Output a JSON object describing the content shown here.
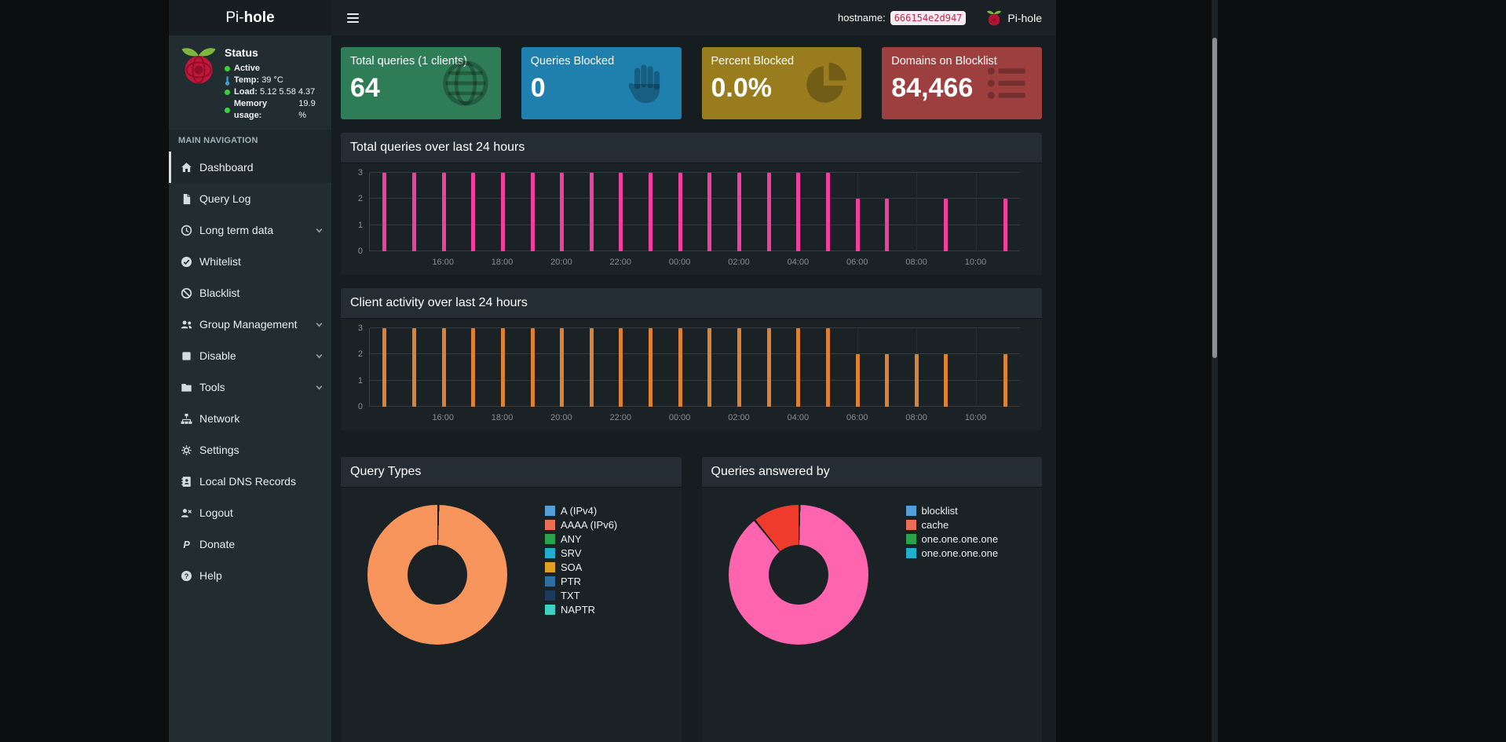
{
  "logo": {
    "prefix": "Pi-",
    "suffix": "hole"
  },
  "navbar": {
    "hostname_label": "hostname:",
    "hostname_value": "666154e2d947",
    "brand": "Pi-hole"
  },
  "sidebar": {
    "status": {
      "title": "Status",
      "rows": [
        {
          "icon": "dot",
          "color": "#3bd13b",
          "label": "Active",
          "value": ""
        },
        {
          "icon": "thermometer",
          "color": "#3d9bd3",
          "label": "Temp:",
          "value": "39 °C"
        },
        {
          "icon": "dot",
          "color": "#3bd13b",
          "label": "Load:",
          "value": "5.12 5.58 4.37"
        },
        {
          "icon": "dot",
          "color": "#3bd13b",
          "label": "Memory usage:",
          "value": "19.9 %"
        }
      ]
    },
    "nav_header": "MAIN NAVIGATION",
    "items": [
      {
        "label": "Dashboard",
        "icon": "home",
        "active": true,
        "chevron": false
      },
      {
        "label": "Query Log",
        "icon": "file",
        "active": false,
        "chevron": false
      },
      {
        "label": "Long term data",
        "icon": "clock",
        "active": false,
        "chevron": true
      },
      {
        "label": "Whitelist",
        "icon": "check-circle",
        "active": false,
        "chevron": false
      },
      {
        "label": "Blacklist",
        "icon": "ban",
        "active": false,
        "chevron": false
      },
      {
        "label": "Group Management",
        "icon": "users",
        "active": false,
        "chevron": true
      },
      {
        "label": "Disable",
        "icon": "stop",
        "active": false,
        "chevron": true
      },
      {
        "label": "Tools",
        "icon": "folder",
        "active": false,
        "chevron": true
      },
      {
        "label": "Network",
        "icon": "sitemap",
        "active": false,
        "chevron": false
      },
      {
        "label": "Settings",
        "icon": "gears",
        "active": false,
        "chevron": false
      },
      {
        "label": "Local DNS Records",
        "icon": "address-book",
        "active": false,
        "chevron": false
      },
      {
        "label": "Logout",
        "icon": "user-times",
        "active": false,
        "chevron": false
      },
      {
        "label": "Donate",
        "icon": "paypal",
        "active": false,
        "chevron": false
      },
      {
        "label": "Help",
        "icon": "question-circle",
        "active": false,
        "chevron": false
      }
    ]
  },
  "cards": [
    {
      "title": "Total queries (1 clients)",
      "value": "64",
      "color": "#2e7d56",
      "icon": "globe"
    },
    {
      "title": "Queries Blocked",
      "value": "0",
      "color": "#1f7fad",
      "icon": "hand-paper"
    },
    {
      "title": "Percent Blocked",
      "value": "0.0%",
      "color": "#997c1e",
      "icon": "pie-chart"
    },
    {
      "title": "Domains on Blocklist",
      "value": "84,466",
      "color": "#9e3f3f",
      "icon": "list-alt"
    }
  ],
  "panels": {
    "total_queries": {
      "title": "Total queries over last 24 hours"
    },
    "client_activity": {
      "title": "Client activity over last 24 hours"
    },
    "query_types": {
      "title": "Query Types"
    },
    "answered_by": {
      "title": "Queries answered by"
    }
  },
  "chart_data": [
    {
      "type": "bar",
      "title": "Total queries over last 24 hours",
      "x_hours": [
        "14:00",
        "15:00",
        "16:00",
        "17:00",
        "18:00",
        "19:00",
        "20:00",
        "21:00",
        "22:00",
        "23:00",
        "00:00",
        "01:00",
        "02:00",
        "03:00",
        "04:00",
        "05:00",
        "06:00",
        "07:00",
        "08:00",
        "09:00",
        "10:00",
        "11:00"
      ],
      "values": [
        3,
        3,
        3,
        3,
        3,
        3,
        3,
        3,
        3,
        3,
        3,
        3,
        3,
        3,
        3,
        3,
        2,
        2,
        0,
        2,
        0,
        2
      ],
      "x_tick_labels": [
        "16:00",
        "18:00",
        "20:00",
        "22:00",
        "00:00",
        "02:00",
        "04:00",
        "06:00",
        "08:00",
        "10:00"
      ],
      "x_tick_indices": [
        2,
        4,
        6,
        8,
        10,
        12,
        14,
        16,
        18,
        20
      ],
      "ylim": [
        0,
        3
      ],
      "y_ticks": [
        0,
        1,
        2,
        3
      ],
      "bar_color": "#f23ea0",
      "grid": true,
      "legend_position": "none"
    },
    {
      "type": "bar",
      "title": "Client activity over last 24 hours",
      "x_hours": [
        "14:00",
        "15:00",
        "16:00",
        "17:00",
        "18:00",
        "19:00",
        "20:00",
        "21:00",
        "22:00",
        "23:00",
        "00:00",
        "01:00",
        "02:00",
        "03:00",
        "04:00",
        "05:00",
        "06:00",
        "07:00",
        "08:00",
        "09:00",
        "10:00",
        "11:00"
      ],
      "values": [
        3,
        3,
        3,
        3,
        3,
        3,
        3,
        3,
        3,
        3,
        3,
        3,
        3,
        3,
        3,
        3,
        2,
        2,
        2,
        2,
        0,
        2
      ],
      "x_tick_labels": [
        "16:00",
        "18:00",
        "20:00",
        "22:00",
        "00:00",
        "02:00",
        "04:00",
        "06:00",
        "08:00",
        "10:00"
      ],
      "x_tick_indices": [
        2,
        4,
        6,
        8,
        10,
        12,
        14,
        16,
        18,
        20
      ],
      "ylim": [
        0,
        3
      ],
      "y_ticks": [
        0,
        1,
        2,
        3
      ],
      "bar_color": "#dd8133",
      "grid": true,
      "legend_position": "none"
    },
    {
      "type": "donut",
      "title": "Query Types",
      "slices": [
        {
          "label": "A (IPv4)",
          "pct": 100,
          "color": "#f7955c"
        }
      ],
      "legend": [
        {
          "label": "A (IPv4)",
          "color": "#549fd7"
        },
        {
          "label": "AAAA (IPv6)",
          "color": "#ec6e54"
        },
        {
          "label": "ANY",
          "color": "#2aa14b"
        },
        {
          "label": "SRV",
          "color": "#1fb0d0"
        },
        {
          "label": "SOA",
          "color": "#dfa022"
        },
        {
          "label": "PTR",
          "color": "#2d6fa3"
        },
        {
          "label": "TXT",
          "color": "#1b3a5c"
        },
        {
          "label": "NAPTR",
          "color": "#3ed0c4"
        }
      ],
      "legend_position": "right",
      "hole_pct": 43
    },
    {
      "type": "donut",
      "title": "Queries answered by",
      "slices": [
        {
          "label": "one.one.one.one",
          "pct": 89,
          "color": "#ff64ae"
        },
        {
          "label": "cache",
          "pct": 11,
          "color": "#ef3b2c"
        }
      ],
      "legend": [
        {
          "label": "blocklist",
          "color": "#549fd7"
        },
        {
          "label": "cache",
          "color": "#ec6e54"
        },
        {
          "label": "one.one.one.one",
          "color": "#2aa14b"
        },
        {
          "label": "one.one.one.one",
          "color": "#1fb0d0"
        }
      ],
      "legend_position": "right",
      "hole_pct": 43
    }
  ],
  "colors": {
    "sidebar_bg": "#222d32",
    "navbar_bg": "#1a2024",
    "content_bg": "#161d21",
    "panel_bg": "#232d33",
    "panel_body_bg": "#1a2226",
    "active_item_bg": "#1e282c",
    "hostname_code_bg": "#f7eef2",
    "hostname_code_text": "#c7254e"
  }
}
